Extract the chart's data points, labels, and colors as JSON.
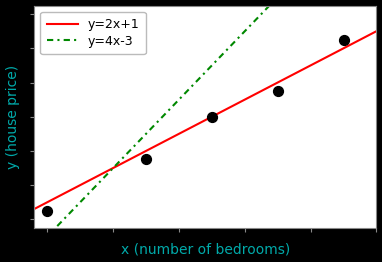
{
  "title": "",
  "xlabel": "x (number of bedrooms)",
  "ylabel": "y (house price)",
  "line1_label": "y=2x+1",
  "line1_slope": 2,
  "line1_intercept": 1,
  "line1_color": "#ff0000",
  "line1_style": "-",
  "line2_label": "y=4x-3",
  "line2_slope": 4,
  "line2_intercept": -3,
  "line2_color": "#008800",
  "line2_style": "-.",
  "scatter_x": [
    1.0,
    2.5,
    3.5,
    4.5,
    5.5
  ],
  "scatter_y": [
    2.5,
    5.5,
    8.0,
    9.5,
    12.5
  ],
  "scatter_color": "#000000",
  "scatter_size": 50,
  "xlim": [
    0.8,
    6.0
  ],
  "ylim": [
    1.5,
    14.5
  ],
  "background_color": "#ffffff",
  "fig_bg_color": "#000000",
  "legend_fontsize": 9,
  "axis_label_fontsize": 10,
  "axis_label_color": "#00aaaa",
  "line_width": 1.5,
  "dash_pattern": [
    3,
    2,
    1,
    2
  ]
}
